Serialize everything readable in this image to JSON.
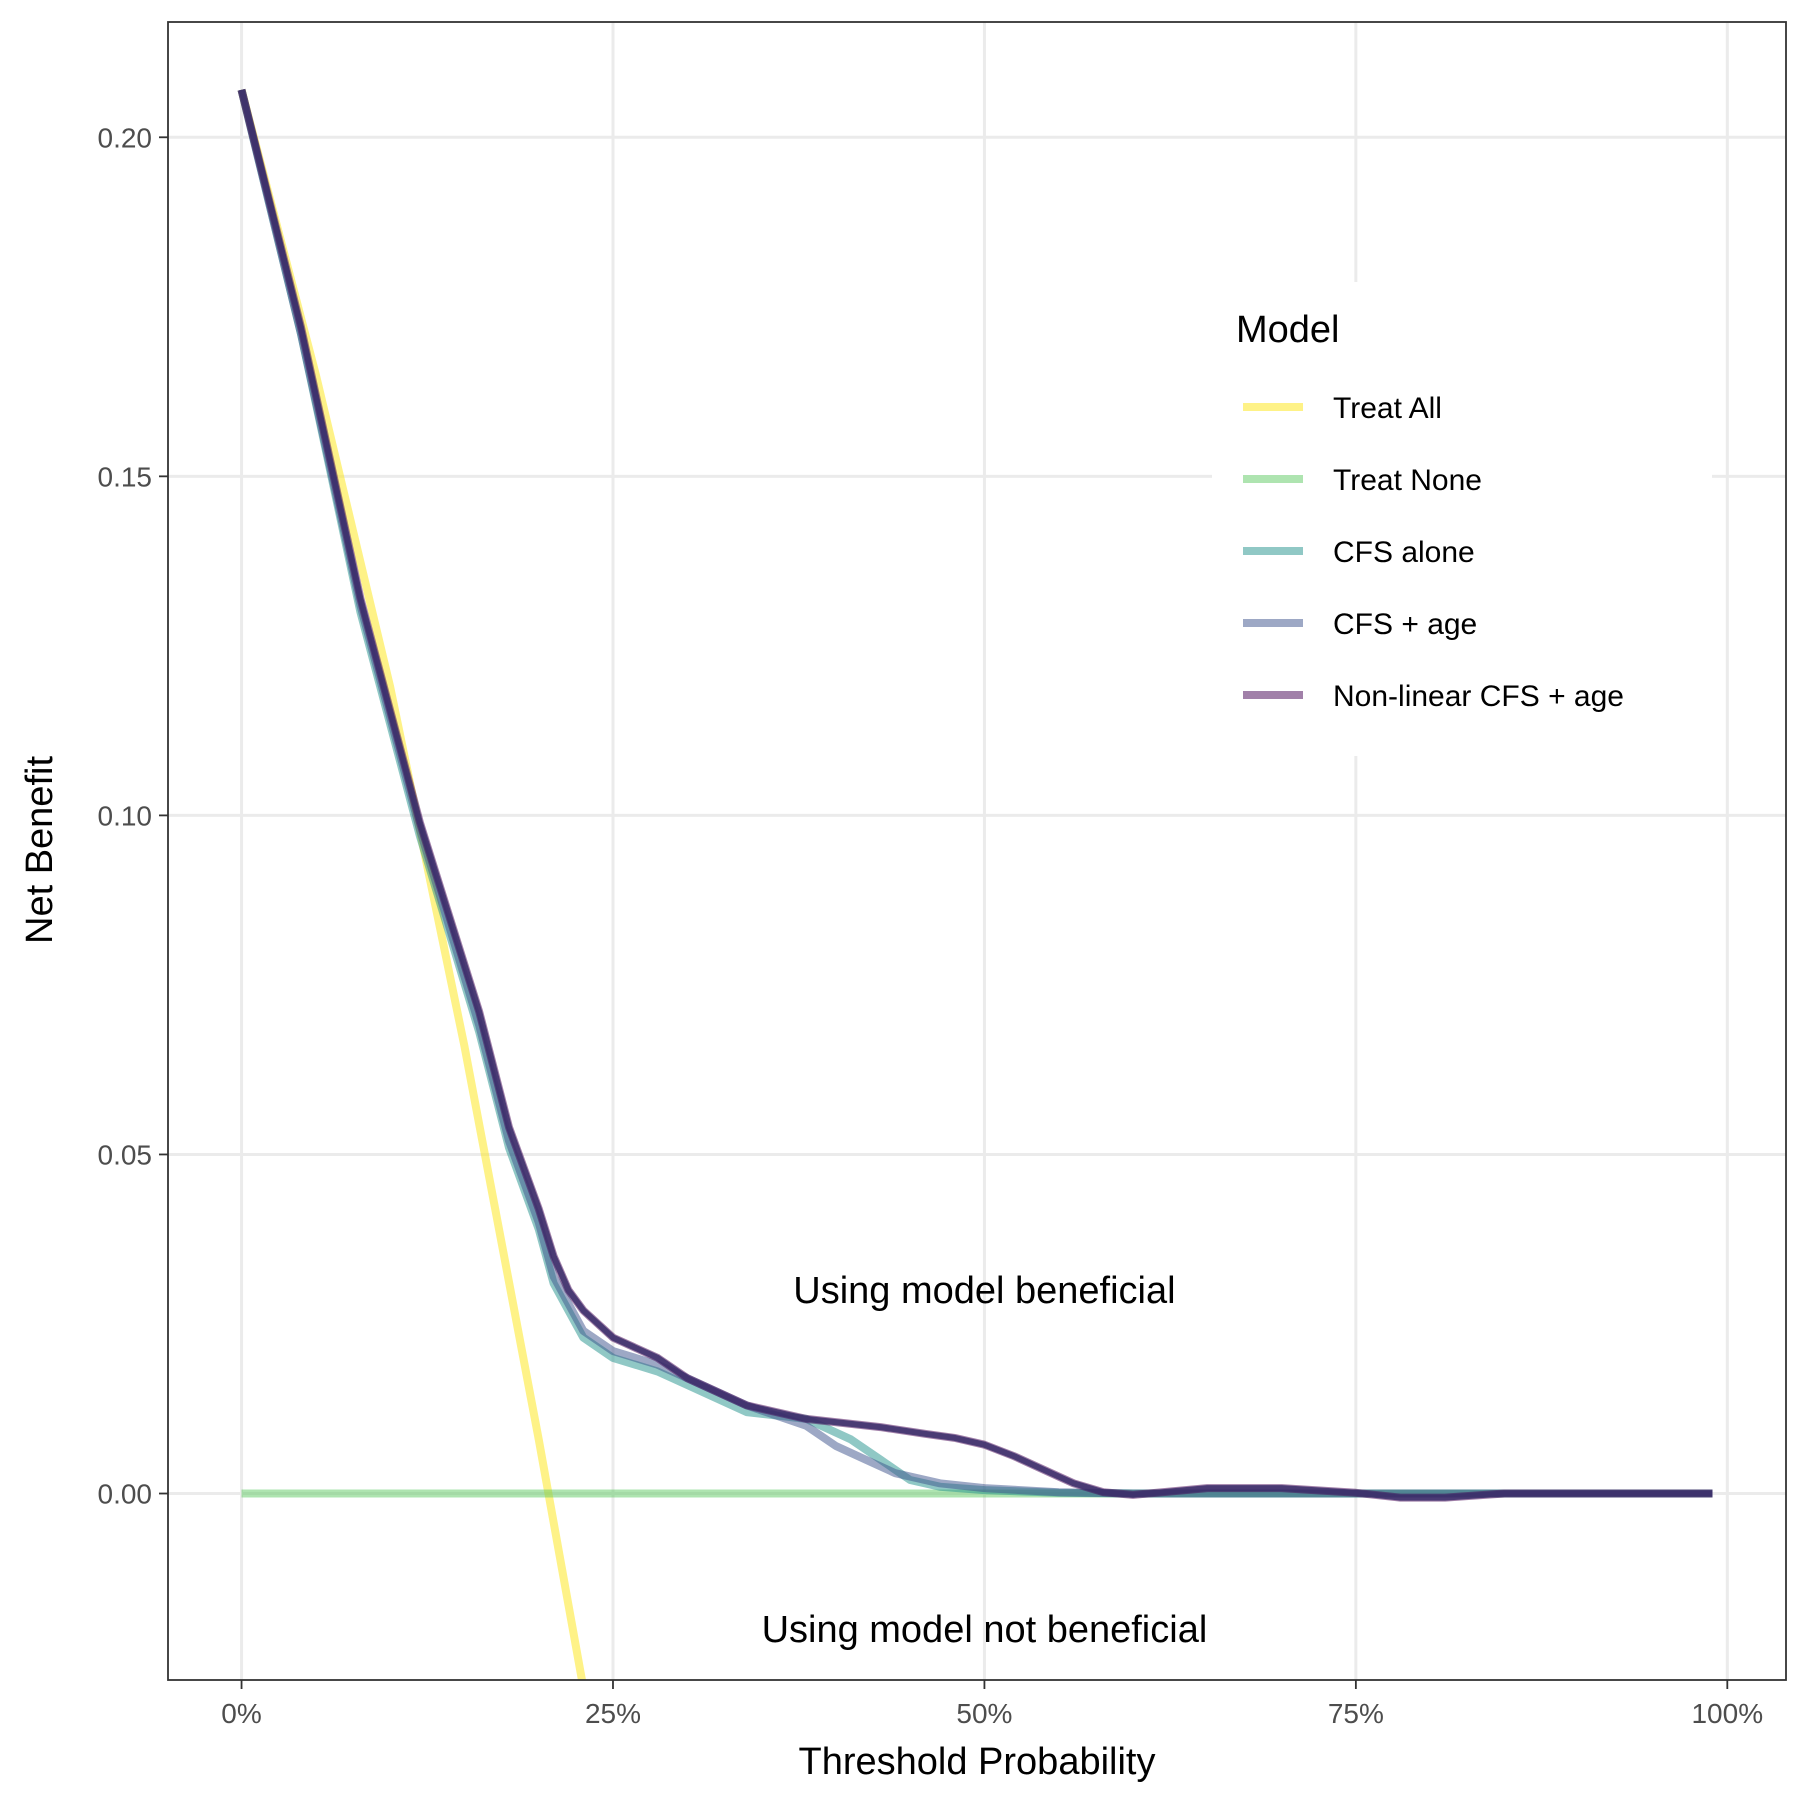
{
  "chart_data": {
    "type": "line",
    "xlabel": "Threshold Probability",
    "ylabel": "Net Benefit",
    "xlim": [
      -0.0495,
      1.0395
    ],
    "ylim": [
      -0.0275,
      0.217
    ],
    "x_ticks": [
      {
        "value": 0,
        "label": "0%"
      },
      {
        "value": 0.25,
        "label": "25%"
      },
      {
        "value": 0.5,
        "label": "50%"
      },
      {
        "value": 0.75,
        "label": "75%"
      },
      {
        "value": 1.0,
        "label": "100%"
      }
    ],
    "y_ticks": [
      {
        "value": 0,
        "label": "0.00"
      },
      {
        "value": 0.05,
        "label": "0.05"
      },
      {
        "value": 0.1,
        "label": "0.10"
      },
      {
        "value": 0.15,
        "label": "0.15"
      },
      {
        "value": 0.2,
        "label": "0.20"
      }
    ],
    "grid": true,
    "legend": {
      "title": "Model",
      "position": "upper-right-inside"
    },
    "annotations": [
      {
        "text": "Using model beneficial",
        "x": 0.5,
        "y": 0.03
      },
      {
        "text": "Using model not beneficial",
        "x": 0.5,
        "y": -0.02
      }
    ],
    "series": [
      {
        "name": "Treat All",
        "color": "#FDE725",
        "opacity": 0.55,
        "x": [
          0.0,
          0.05,
          0.1,
          0.15,
          0.2,
          0.232
        ],
        "y": [
          0.207,
          0.165,
          0.119,
          0.066,
          0.008,
          -0.031
        ]
      },
      {
        "name": "Treat None",
        "color": "#5EC962",
        "opacity": 0.5,
        "x": [
          0.0,
          0.99
        ],
        "y": [
          0.0,
          0.0
        ]
      },
      {
        "name": "CFS alone",
        "color": "#21918C",
        "opacity": 0.5,
        "x": [
          0.0,
          0.04,
          0.08,
          0.12,
          0.16,
          0.18,
          0.2,
          0.21,
          0.22,
          0.23,
          0.25,
          0.28,
          0.3,
          0.34,
          0.38,
          0.41,
          0.43,
          0.45,
          0.47,
          0.5,
          0.55,
          0.6,
          0.7,
          0.75,
          0.8,
          0.9,
          0.99
        ],
        "y": [
          0.207,
          0.171,
          0.13,
          0.097,
          0.068,
          0.051,
          0.039,
          0.031,
          0.027,
          0.023,
          0.02,
          0.018,
          0.016,
          0.012,
          0.011,
          0.008,
          0.005,
          0.002,
          0.001,
          0.0005,
          0.0001,
          0.0,
          0.0,
          0.0,
          0.0,
          0.0,
          0.0
        ]
      },
      {
        "name": "CFS + age",
        "color": "#3B528B",
        "opacity": 0.5,
        "x": [
          0.0,
          0.04,
          0.08,
          0.12,
          0.16,
          0.18,
          0.2,
          0.21,
          0.22,
          0.23,
          0.25,
          0.28,
          0.3,
          0.34,
          0.38,
          0.4,
          0.42,
          0.44,
          0.47,
          0.5,
          0.55,
          0.6,
          0.7,
          0.75,
          0.8,
          0.9,
          0.99
        ],
        "y": [
          0.207,
          0.171,
          0.131,
          0.098,
          0.069,
          0.052,
          0.04,
          0.032,
          0.028,
          0.024,
          0.021,
          0.019,
          0.017,
          0.013,
          0.01,
          0.007,
          0.005,
          0.003,
          0.0015,
          0.0008,
          0.0002,
          0.0,
          0.0,
          0.0,
          0.0,
          0.0,
          0.0
        ]
      },
      {
        "name": "Non-linear CFS + age",
        "color": "#440154",
        "opacity": 0.5,
        "x": [
          0.0,
          0.04,
          0.08,
          0.12,
          0.16,
          0.18,
          0.2,
          0.21,
          0.22,
          0.23,
          0.25,
          0.28,
          0.3,
          0.34,
          0.38,
          0.43,
          0.46,
          0.48,
          0.5,
          0.52,
          0.54,
          0.56,
          0.58,
          0.6,
          0.65,
          0.7,
          0.75,
          0.78,
          0.81,
          0.85,
          0.9,
          0.99
        ],
        "y": [
          0.207,
          0.172,
          0.132,
          0.099,
          0.071,
          0.054,
          0.042,
          0.035,
          0.03,
          0.027,
          0.023,
          0.02,
          0.017,
          0.013,
          0.011,
          0.0098,
          0.0088,
          0.0082,
          0.0072,
          0.0055,
          0.0035,
          0.0015,
          0.0002,
          -0.0002,
          0.0008,
          0.0008,
          0.0001,
          -0.0006,
          -0.0006,
          0.0,
          0.0,
          0.0
        ]
      }
    ],
    "overlay": {
      "x": [
        0.0,
        0.04,
        0.08,
        0.12,
        0.16,
        0.18,
        0.2,
        0.21,
        0.22,
        0.23,
        0.25,
        0.28,
        0.3,
        0.34,
        0.38,
        0.43,
        0.46,
        0.48,
        0.5,
        0.52,
        0.54,
        0.56,
        0.58,
        0.6,
        0.65,
        0.7,
        0.75,
        0.78,
        0.81,
        0.85,
        0.9,
        0.99
      ],
      "y": [
        0.207,
        0.172,
        0.132,
        0.099,
        0.071,
        0.054,
        0.042,
        0.035,
        0.03,
        0.027,
        0.023,
        0.02,
        0.017,
        0.013,
        0.011,
        0.0098,
        0.0088,
        0.0082,
        0.0072,
        0.0055,
        0.0035,
        0.0015,
        0.0002,
        -0.0002,
        0.0008,
        0.0008,
        0.0001,
        -0.0006,
        -0.0006,
        0.0,
        0.0,
        0.0
      ],
      "color": "#3B2F6B",
      "opacity": 0.85
    }
  }
}
